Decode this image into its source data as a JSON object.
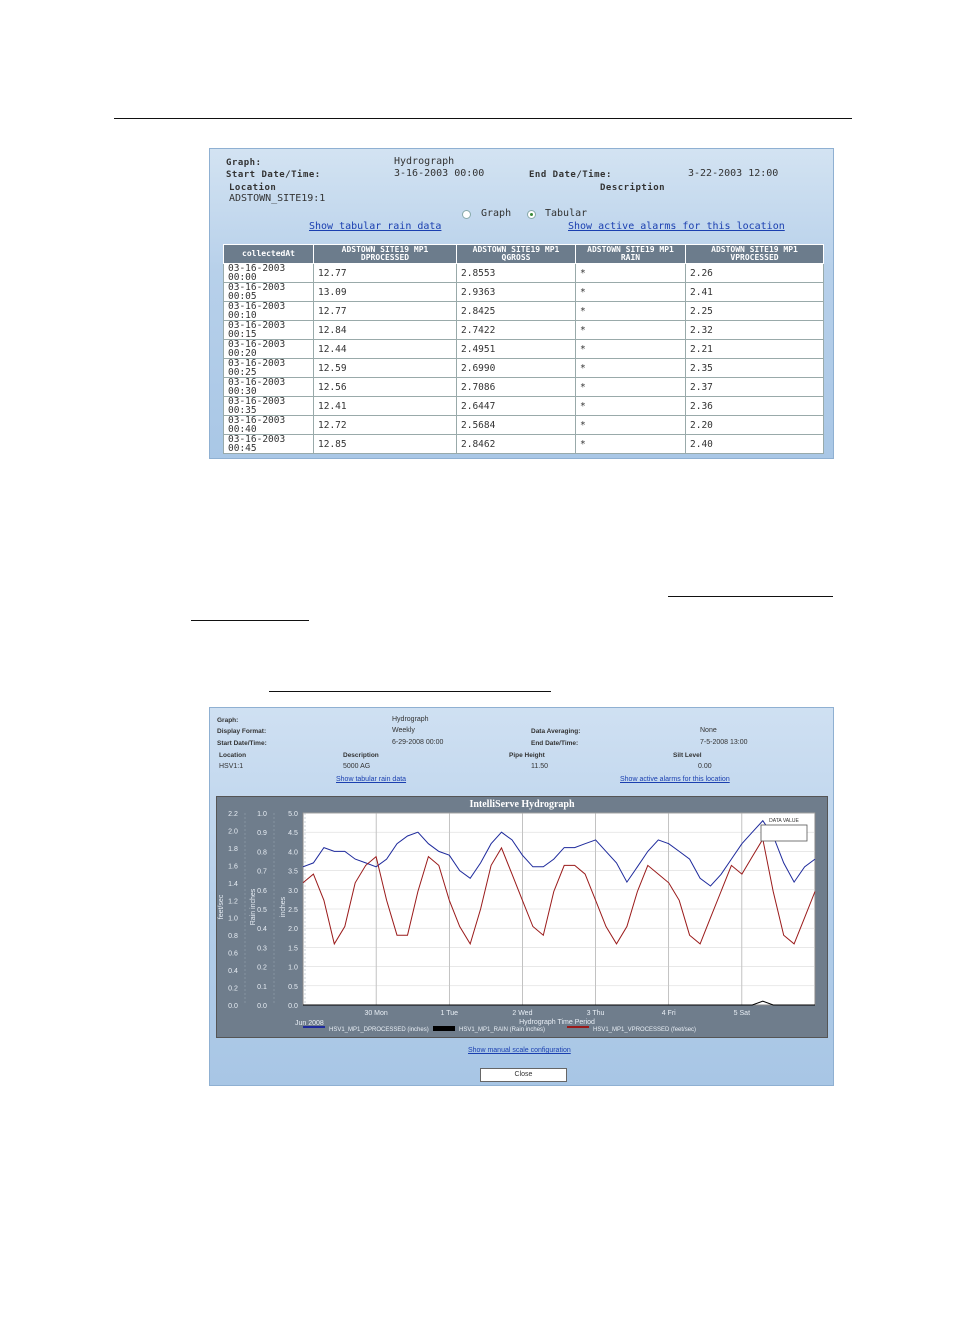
{
  "tabular_panel": {
    "graph_label": "Graph:",
    "graph_value": "Hydrograph",
    "start_label": "Start Date/Time:",
    "start_value": "3-16-2003 00:00",
    "end_label": "End Date/Time:",
    "end_value": "3-22-2003 12:00",
    "location_label": "Location",
    "location_value": "ADSTOWN_SITE19:1",
    "description_label": "Description",
    "radio_graph": "Graph",
    "radio_tabular": "Tabular",
    "selected_view": "Tabular",
    "link_rain": "Show tabular rain data",
    "link_alarms": "Show active alarms for this location",
    "columns": [
      "collectedAt",
      "ADSTOWN SITE19 MP1 DPROCESSED",
      "ADSTOWN SITE19 MP1 QGROSS",
      "ADSTOWN SITE19 MP1 RAIN",
      "ADSTOWN SITE19 MP1 VPROCESSED"
    ],
    "rows": [
      [
        "03-16-2003 00:00",
        "12.77",
        "2.8553",
        "*",
        "2.26"
      ],
      [
        "03-16-2003 00:05",
        "13.09",
        "2.9363",
        "*",
        "2.41"
      ],
      [
        "03-16-2003 00:10",
        "12.77",
        "2.8425",
        "*",
        "2.25"
      ],
      [
        "03-16-2003 00:15",
        "12.84",
        "2.7422",
        "*",
        "2.32"
      ],
      [
        "03-16-2003 00:20",
        "12.44",
        "2.4951",
        "*",
        "2.21"
      ],
      [
        "03-16-2003 00:25",
        "12.59",
        "2.6990",
        "*",
        "2.35"
      ],
      [
        "03-16-2003 00:30",
        "12.56",
        "2.7086",
        "*",
        "2.37"
      ],
      [
        "03-16-2003 00:35",
        "12.41",
        "2.6447",
        "*",
        "2.36"
      ],
      [
        "03-16-2003 00:40",
        "12.72",
        "2.5684",
        "*",
        "2.20"
      ],
      [
        "03-16-2003 00:45",
        "12.85",
        "2.8462",
        "*",
        "2.40"
      ]
    ]
  },
  "graph_panel": {
    "graph_label": "Graph:",
    "graph_value": "Hydrograph",
    "format_label": "Display Format:",
    "format_value": "Weekly",
    "averaging_label": "Data Averaging:",
    "averaging_value": "None",
    "start_label": "Start Date/Time:",
    "start_value": "6-29-2008 00:00",
    "end_label": "End Date/Time:",
    "end_value": "7-5-2008 13:00",
    "location_label": "Location",
    "location_value": "HSV1:1",
    "description_label": "Description",
    "description_value": "5000 AG",
    "pipe_label": "Pipe Height",
    "pipe_value": "11.50",
    "silt_label": "Silt Level",
    "silt_value": "0.00",
    "link_rain": "Show tabular rain data",
    "link_alarms": "Show active alarms for this location",
    "link_scale": "Show manual scale configuration",
    "close_label": "Close"
  },
  "chart_data": {
    "type": "line",
    "title": "IntelliServe Hydrograph",
    "xlabel": "Hydrograph Time Period",
    "x_start_label": "Jun 2008",
    "x_ticks": [
      "30 Mon",
      "1 Tue",
      "2 Wed",
      "3 Thu",
      "4 Fri",
      "5 Sat"
    ],
    "axes": [
      {
        "label": "feet/sec",
        "ticks": [
          "0.0",
          "0.2",
          "0.4",
          "0.6",
          "0.8",
          "1.0",
          "1.2",
          "1.4",
          "1.6",
          "1.8",
          "2.0",
          "2.2"
        ],
        "range": [
          0,
          2.2
        ]
      },
      {
        "label": "Rain inches",
        "ticks": [
          "0.0",
          "0.1",
          "0.2",
          "0.3",
          "0.4",
          "0.5",
          "0.6",
          "0.7",
          "0.8",
          "0.9",
          "1.0"
        ],
        "range": [
          0,
          1.0
        ]
      },
      {
        "label": "inches",
        "ticks": [
          "0.0",
          "0.5",
          "1.0",
          "1.5",
          "2.0",
          "2.5",
          "3.0",
          "3.5",
          "4.0",
          "4.5",
          "5.0"
        ],
        "range": [
          0,
          5.0
        ]
      }
    ],
    "legend_box_label": "DATA VALUE",
    "grid": true,
    "series": [
      {
        "name": "HSV1_MP1_DPROCESSED (inches)",
        "color": "#1e2a9c",
        "values": [
          3.6,
          3.7,
          4.1,
          4.0,
          4.0,
          3.8,
          3.7,
          3.6,
          3.8,
          4.2,
          4.4,
          4.5,
          4.2,
          4.0,
          3.9,
          3.5,
          3.3,
          3.7,
          4.2,
          4.5,
          4.3,
          3.9,
          3.6,
          3.6,
          3.8,
          4.1,
          4.1,
          4.2,
          4.3,
          4.0,
          3.7,
          3.2,
          3.6,
          4.0,
          4.3,
          4.2,
          4.0,
          3.8,
          3.3,
          3.1,
          3.4,
          3.8,
          4.2,
          4.5,
          4.8,
          4.4,
          3.7,
          3.2,
          3.6,
          3.8
        ]
      },
      {
        "name": "HSV1_MP1_RAIN (Rain inches)",
        "color": "#000000",
        "values": [
          0,
          0,
          0,
          0,
          0,
          0,
          0,
          0,
          0,
          0,
          0,
          0,
          0,
          0,
          0,
          0,
          0,
          0,
          0,
          0,
          0,
          0,
          0,
          0,
          0,
          0,
          0,
          0,
          0,
          0,
          0,
          0,
          0,
          0,
          0,
          0,
          0,
          0,
          0,
          0,
          0,
          0,
          0,
          0,
          0.02,
          0,
          0,
          0,
          0,
          0
        ]
      },
      {
        "name": "HSV1_MP1_VPROCESSED (feet/sec)",
        "color": "#9a1a1a",
        "values": [
          1.4,
          1.5,
          1.2,
          0.7,
          0.9,
          1.4,
          1.6,
          1.7,
          1.2,
          0.8,
          0.8,
          1.3,
          1.7,
          1.6,
          1.2,
          0.9,
          0.7,
          1.1,
          1.6,
          1.8,
          1.5,
          1.2,
          0.9,
          0.8,
          1.3,
          1.6,
          1.6,
          1.5,
          1.2,
          0.9,
          0.7,
          0.9,
          1.3,
          1.6,
          1.5,
          1.4,
          1.2,
          0.8,
          0.7,
          1.0,
          1.3,
          1.6,
          1.5,
          1.7,
          1.9,
          1.3,
          0.8,
          0.7,
          1.0,
          1.3
        ]
      }
    ]
  }
}
